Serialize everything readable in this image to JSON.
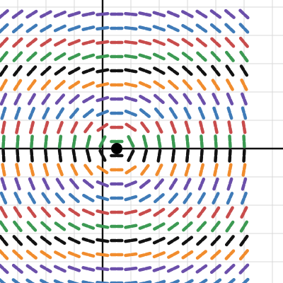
{
  "chart_data": {
    "type": "slope-field",
    "xlim": [
      -7.25,
      12.75
    ],
    "ylim": [
      -9.5,
      10.5
    ],
    "grid": true,
    "grid_step": 2,
    "field_x_range": [
      -7,
      10
    ],
    "field_y_range": [
      -9.5,
      9.5
    ],
    "field_x_step": 1,
    "field_y_step": 1,
    "color_cycle": [
      "#6b4faa",
      "#3f7bb8",
      "#c84c4c",
      "#3c9a53",
      "#121212",
      "#f18c2d"
    ],
    "point": {
      "x": 1,
      "y": 0
    },
    "colors": {
      "grid": "#d8d8d8",
      "axis": "#111111",
      "point": "#000000"
    }
  }
}
